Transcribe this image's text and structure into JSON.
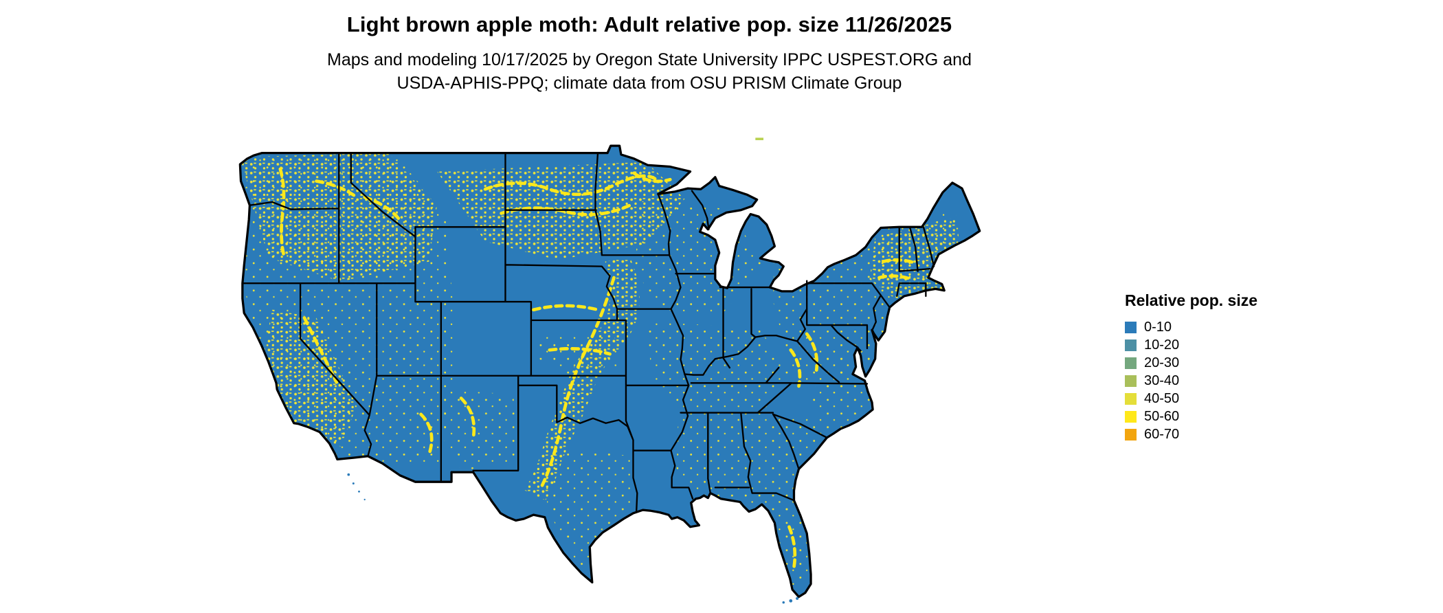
{
  "header": {
    "title": "Light brown apple moth: Adult relative pop. size 11/26/2025",
    "subtitle_line1": "Maps and modeling 10/17/2025 by Oregon State University IPPC USPEST.ORG and",
    "subtitle_line2": "USDA-APHIS-PPQ; climate data from OSU PRISM Climate Group"
  },
  "map": {
    "region": "Contiguous United States",
    "base_color": "#2b7bb9",
    "speckle_color": "#f2e635",
    "bright_speckle_color": "#ffe81a",
    "outline_color": "#000000",
    "water_color": "#ffffff"
  },
  "legend": {
    "title": "Relative pop. size",
    "items": [
      {
        "label": "0-10",
        "color": "#2b7bb9"
      },
      {
        "label": "10-20",
        "color": "#4d90a5"
      },
      {
        "label": "20-30",
        "color": "#74a77e"
      },
      {
        "label": "30-40",
        "color": "#a9bf5a"
      },
      {
        "label": "40-50",
        "color": "#e4de39"
      },
      {
        "label": "50-60",
        "color": "#ffe81a"
      },
      {
        "label": "60-70",
        "color": "#f2a50f"
      }
    ]
  }
}
